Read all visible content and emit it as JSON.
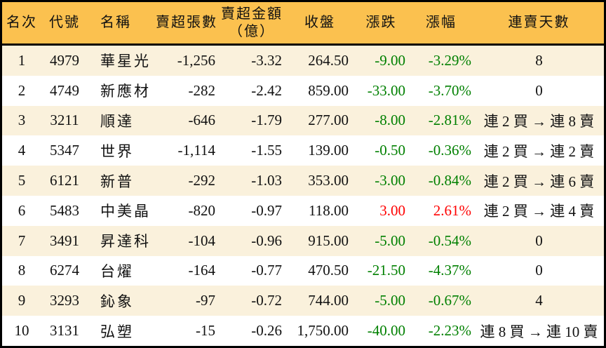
{
  "colors": {
    "header-bg": "#fbc14f",
    "stripe": "#faf1dc",
    "border": "#000000",
    "text": "#111111",
    "up": "#ff0000",
    "down": "#008000"
  },
  "chart_data": {
    "type": "table",
    "title": "",
    "columns": [
      "名次",
      "代號",
      "名稱",
      "賣超張數",
      "賣超金額\n（億）",
      "收盤",
      "漲跌",
      "漲幅",
      "連賣天數"
    ],
    "rows": [
      [
        "1",
        "4979",
        "華星光",
        "-1,256",
        "-3.32",
        "264.50",
        "-9.00",
        "-3.29%",
        "8"
      ],
      [
        "2",
        "4749",
        "新應材",
        "-282",
        "-2.42",
        "859.00",
        "-33.00",
        "-3.70%",
        "0"
      ],
      [
        "3",
        "3211",
        "順達",
        "-646",
        "-1.79",
        "277.00",
        "-8.00",
        "-2.81%",
        "連 2 買 → 連 8 賣"
      ],
      [
        "4",
        "5347",
        "世界",
        "-1,114",
        "-1.55",
        "139.00",
        "-0.50",
        "-0.36%",
        "連 2 買 → 連 2 賣"
      ],
      [
        "5",
        "6121",
        "新普",
        "-292",
        "-1.03",
        "353.00",
        "-3.00",
        "-0.84%",
        "連 2 買 → 連 6 賣"
      ],
      [
        "6",
        "5483",
        "中美晶",
        "-820",
        "-0.97",
        "118.00",
        "3.00",
        "2.61%",
        "連 2 買 → 連 4 賣"
      ],
      [
        "7",
        "3491",
        "昇達科",
        "-104",
        "-0.96",
        "915.00",
        "-5.00",
        "-0.54%",
        "0"
      ],
      [
        "8",
        "6274",
        "台燿",
        "-164",
        "-0.77",
        "470.50",
        "-21.50",
        "-4.37%",
        "0"
      ],
      [
        "9",
        "3293",
        "鈊象",
        "-97",
        "-0.72",
        "744.00",
        "-5.00",
        "-0.67%",
        "4"
      ],
      [
        "10",
        "3131",
        "弘塑",
        "-15",
        "-0.26",
        "1,750.00",
        "-40.00",
        "-2.23%",
        "連 8 買 → 連 10 賣"
      ]
    ]
  }
}
